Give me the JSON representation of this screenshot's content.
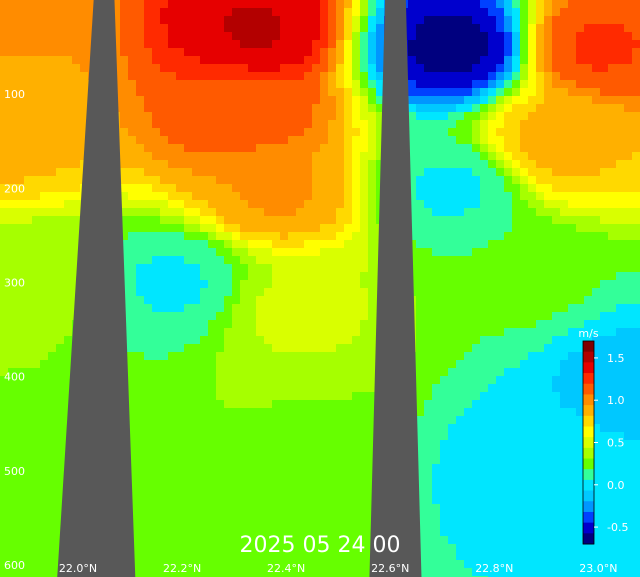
{
  "chart_data": {
    "type": "heatmap",
    "title": "",
    "timestamp": "2025 05 24 00",
    "x": {
      "ticks": [
        {
          "value": 22.0,
          "label": "22.0°N"
        },
        {
          "value": 22.2,
          "label": "22.2°N"
        },
        {
          "value": 22.4,
          "label": "22.4°N"
        },
        {
          "value": 22.6,
          "label": "22.6°N"
        },
        {
          "value": 22.8,
          "label": "22.8°N"
        },
        {
          "value": 23.0,
          "label": "23.0°N"
        }
      ],
      "range": [
        21.85,
        23.08
      ]
    },
    "y": {
      "ticks": [
        {
          "value": 100,
          "label": "100"
        },
        {
          "value": 200,
          "label": "200"
        },
        {
          "value": 300,
          "label": "300"
        },
        {
          "value": 400,
          "label": "400"
        },
        {
          "value": 500,
          "label": "500"
        },
        {
          "value": 600,
          "label": "600"
        }
      ],
      "range": [
        0,
        600
      ],
      "reversed": true
    },
    "colorbar": {
      "unit": "m/s",
      "range": [
        -0.7,
        1.7
      ],
      "ticks": [
        {
          "value": 1.5,
          "label": "1.5"
        },
        {
          "value": 1.0,
          "label": "1.0"
        },
        {
          "value": 0.5,
          "label": "0.5"
        },
        {
          "value": 0.0,
          "label": "0.0"
        },
        {
          "value": -0.5,
          "label": "-0.5"
        }
      ],
      "colors": [
        "#00007f",
        "#0000cd",
        "#0041ff",
        "#0096ff",
        "#00c8ff",
        "#00e6ff",
        "#33ff99",
        "#66ff00",
        "#a6ff00",
        "#d9ff00",
        "#ffff00",
        "#ffd900",
        "#ffb000",
        "#ff8c00",
        "#ff5a00",
        "#ff2a00",
        "#e60000",
        "#b30000",
        "#800000"
      ]
    },
    "centers": [
      {
        "x": 21.87,
        "depth": 20,
        "value": 0.95
      },
      {
        "x": 21.86,
        "depth": 140,
        "value": 0.85
      },
      {
        "x": 21.9,
        "depth": 300,
        "value": 0.35
      },
      {
        "x": 21.95,
        "depth": 500,
        "value": 0.25
      },
      {
        "x": 22.34,
        "depth": 30,
        "value": 1.45
      },
      {
        "x": 22.32,
        "depth": 120,
        "value": 1.15
      },
      {
        "x": 22.38,
        "depth": 200,
        "value": 0.95
      },
      {
        "x": 22.42,
        "depth": 330,
        "value": 0.45
      },
      {
        "x": 22.45,
        "depth": 480,
        "value": 0.3
      },
      {
        "x": 22.18,
        "depth": 300,
        "value": 0.05
      },
      {
        "x": 22.72,
        "depth": 50,
        "value": -0.6
      },
      {
        "x": 22.72,
        "depth": 200,
        "value": 0.05
      },
      {
        "x": 23.0,
        "depth": 50,
        "value": 1.2
      },
      {
        "x": 22.92,
        "depth": 150,
        "value": 0.85
      },
      {
        "x": 22.86,
        "depth": 300,
        "value": 0.2
      },
      {
        "x": 22.85,
        "depth": 500,
        "value": 0.0
      },
      {
        "x": 23.05,
        "depth": 400,
        "value": -0.1
      }
    ],
    "terrain": [
      {
        "x_top": 22.03,
        "x_top_right": 22.07,
        "bottom_left": 21.96,
        "bottom_right": 22.11
      },
      {
        "x_top": 22.59,
        "x_top_right": 22.63,
        "bottom_left": 22.56,
        "bottom_right": 22.66
      }
    ],
    "colors": {
      "terrain": "#585858",
      "contour": "#ffffff"
    }
  }
}
